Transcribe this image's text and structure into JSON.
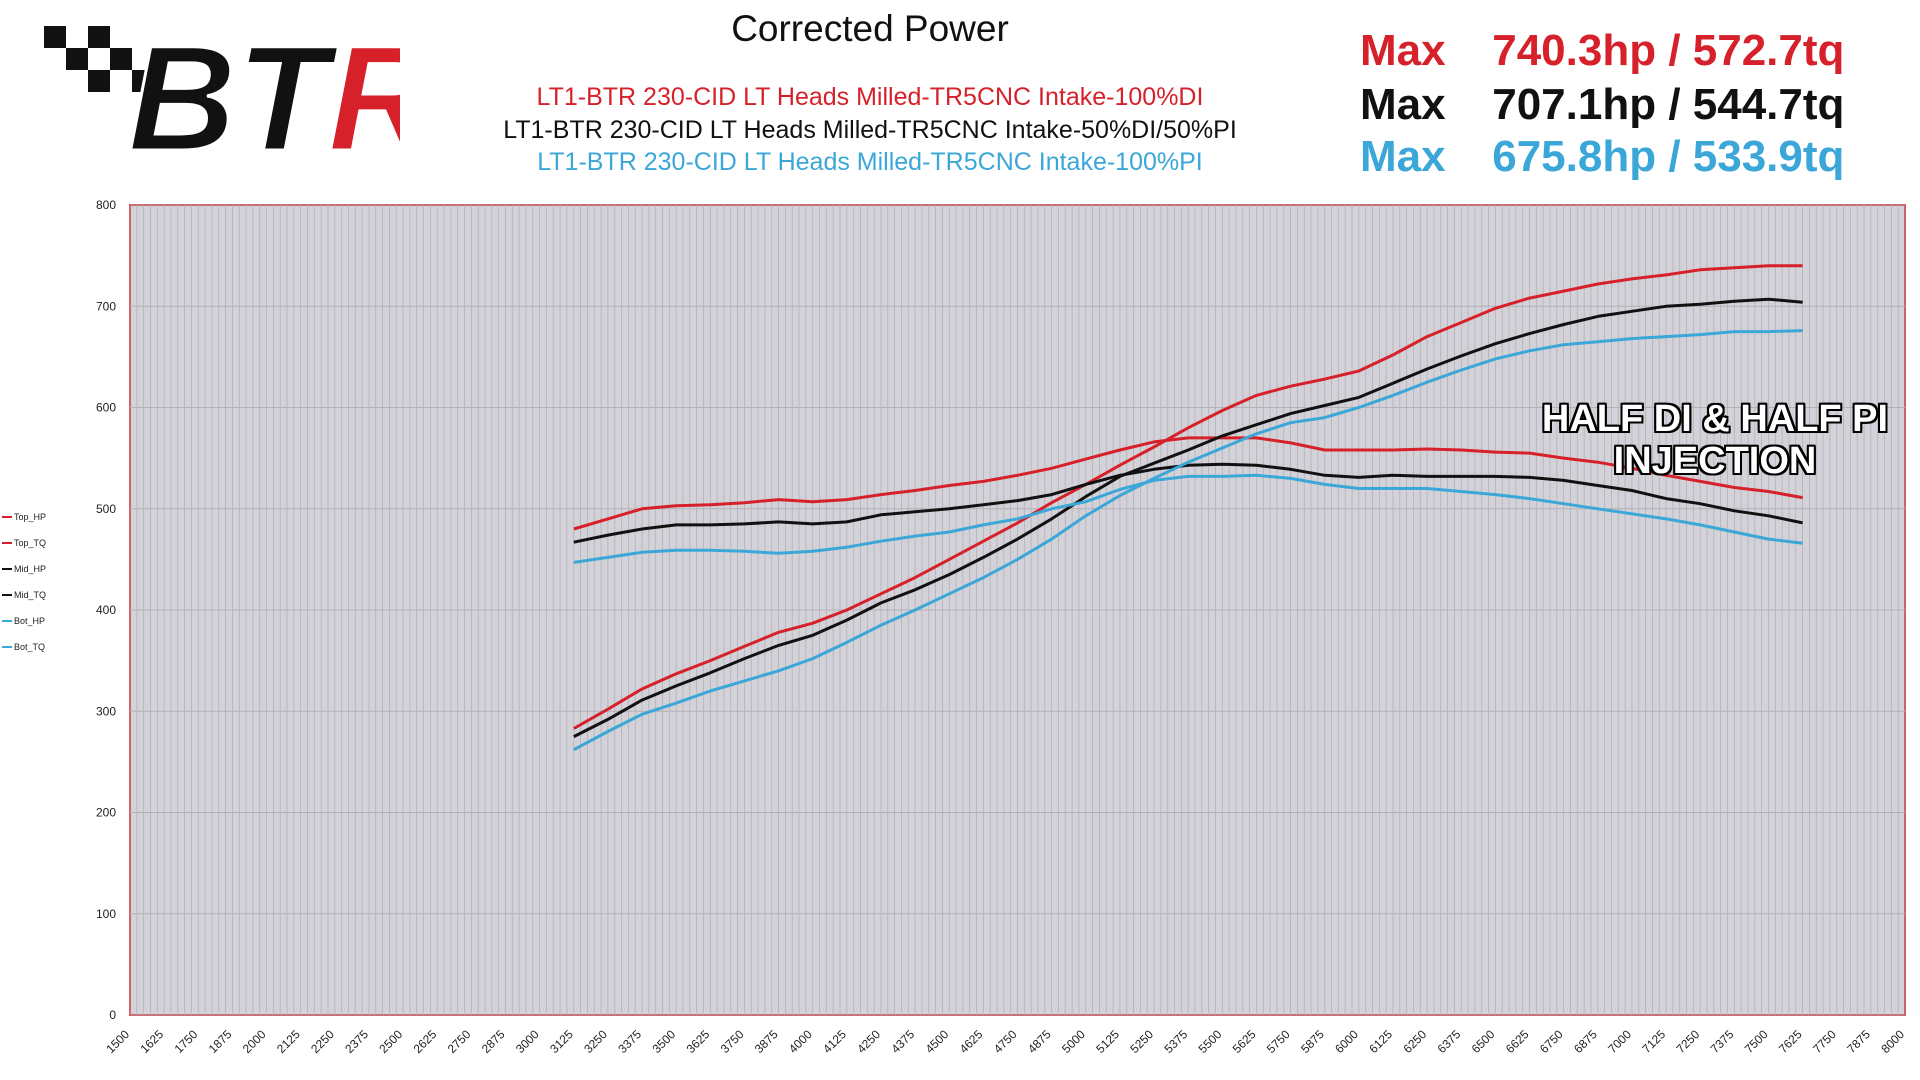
{
  "logo": {
    "text": "BTR"
  },
  "header": {
    "title": "Corrected Power",
    "runs": [
      {
        "label": "LT1-BTR 230-CID LT Heads Milled-TR5CNC Intake-100%DI",
        "color": "#d6202a"
      },
      {
        "label": "LT1-BTR 230-CID LT Heads Milled-TR5CNC Intake-50%DI/50%PI",
        "color": "#111111"
      },
      {
        "label": "LT1-BTR 230-CID LT Heads Milled-TR5CNC Intake-100%PI",
        "color": "#3aa7d8"
      }
    ],
    "max_lines": [
      {
        "label": "Max",
        "value": "740.3hp / 572.7tq",
        "color": "#d6202a"
      },
      {
        "label": "Max",
        "value": "707.1hp / 544.7tq",
        "color": "#111111"
      },
      {
        "label": "Max",
        "value": "675.8hp / 533.9tq",
        "color": "#3aa7d8"
      }
    ]
  },
  "annotation": {
    "line1": "HALF DI & HALF PI",
    "line2": "INJECTION"
  },
  "chart_data": {
    "type": "line",
    "xlim": [
      1500,
      8000
    ],
    "ylim": [
      0,
      800
    ],
    "x_ticks": [
      1500,
      1625,
      1750,
      1875,
      2000,
      2125,
      2250,
      2375,
      2500,
      2625,
      2750,
      2875,
      3000,
      3125,
      3250,
      3375,
      3500,
      3625,
      3750,
      3875,
      4000,
      4125,
      4250,
      4375,
      4500,
      4625,
      4750,
      4875,
      5000,
      5125,
      5250,
      5375,
      5500,
      5625,
      5750,
      5875,
      6000,
      6125,
      6250,
      6375,
      6500,
      6625,
      6750,
      6875,
      7000,
      7125,
      7250,
      7375,
      7500,
      7625,
      7750,
      7875,
      8000
    ],
    "y_ticks": [
      0,
      100,
      200,
      300,
      400,
      500,
      600,
      700,
      800
    ],
    "grid": true,
    "legend_position": "left",
    "x": [
      3125,
      3250,
      3375,
      3500,
      3625,
      3750,
      3875,
      4000,
      4125,
      4250,
      4375,
      4500,
      4625,
      4750,
      4875,
      5000,
      5125,
      5250,
      5375,
      5500,
      5625,
      5750,
      5875,
      6000,
      6125,
      6250,
      6375,
      6500,
      6625,
      6750,
      6875,
      7000,
      7125,
      7250,
      7375,
      7500,
      7625
    ],
    "series": [
      {
        "name": "Top_HP",
        "color": "#d6202a",
        "values": [
          283,
          302,
          322,
          337,
          350,
          364,
          378,
          387,
          400,
          416,
          432,
          450,
          468,
          486,
          506,
          524,
          543,
          561,
          580,
          597,
          612,
          621,
          628,
          636,
          652,
          670,
          684,
          698,
          708,
          715,
          722,
          727,
          731,
          736,
          738,
          740,
          740
        ]
      },
      {
        "name": "Top_TQ",
        "color": "#d6202a",
        "values": [
          480,
          490,
          500,
          503,
          504,
          506,
          509,
          507,
          509,
          514,
          518,
          523,
          527,
          533,
          540,
          549,
          558,
          566,
          570,
          570,
          570,
          565,
          558,
          558,
          558,
          559,
          558,
          556,
          555,
          550,
          546,
          540,
          533,
          527,
          521,
          517,
          511
        ]
      },
      {
        "name": "Mid_HP",
        "color": "#111111",
        "values": [
          275,
          292,
          311,
          325,
          338,
          352,
          365,
          375,
          390,
          407,
          420,
          435,
          452,
          470,
          490,
          512,
          532,
          545,
          558,
          572,
          583,
          594,
          602,
          610,
          624,
          638,
          651,
          663,
          673,
          682,
          690,
          695,
          700,
          702,
          705,
          707,
          704
        ]
      },
      {
        "name": "Mid_TQ",
        "color": "#111111",
        "values": [
          467,
          474,
          480,
          484,
          484,
          485,
          487,
          485,
          487,
          494,
          497,
          500,
          504,
          508,
          514,
          524,
          533,
          539,
          543,
          544,
          543,
          539,
          533,
          531,
          533,
          532,
          532,
          532,
          531,
          528,
          523,
          518,
          510,
          505,
          498,
          493,
          486
        ]
      },
      {
        "name": "Bot_HP",
        "color": "#3aa7d8",
        "values": [
          262,
          280,
          297,
          308,
          320,
          330,
          340,
          352,
          368,
          385,
          400,
          416,
          432,
          450,
          470,
          493,
          513,
          530,
          546,
          560,
          574,
          585,
          590,
          600,
          612,
          625,
          637,
          648,
          656,
          662,
          665,
          668,
          670,
          672,
          675,
          675,
          676
        ]
      },
      {
        "name": "Bot_TQ",
        "color": "#3aa7d8",
        "values": [
          447,
          452,
          457,
          459,
          459,
          458,
          456,
          458,
          462,
          468,
          473,
          477,
          484,
          490,
          500,
          507,
          519,
          528,
          532,
          532,
          533,
          530,
          524,
          520,
          520,
          520,
          517,
          514,
          510,
          505,
          500,
          495,
          490,
          484,
          477,
          470,
          466
        ]
      }
    ]
  }
}
